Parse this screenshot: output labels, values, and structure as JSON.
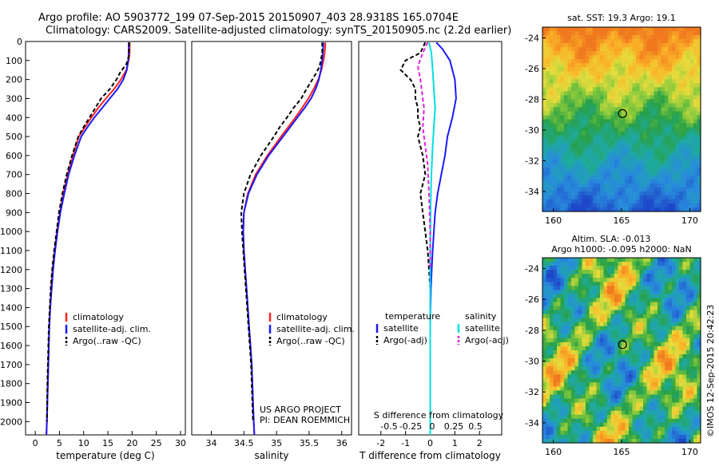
{
  "header": {
    "line1": "Argo profile: AO 5903772_199 07-Sep-2015 20150907_403 28.9318S 165.0704E",
    "line2": "Climatology: CARS2009. Satellite-adjusted climatology: synTS_20150905.nc (2.2d earlier)"
  },
  "colors": {
    "climatology": "#ff2020",
    "satellite": "#1a1aff",
    "argo": "#000000",
    "salinity_sat": "#00e0e0",
    "salinity_argo": "#e020e0"
  },
  "chart_data": [
    {
      "id": "temperature",
      "type": "line",
      "xlabel": "temperature (deg C)",
      "xlim": [
        -2,
        31
      ],
      "xticks": [
        0,
        5,
        10,
        15,
        20,
        25,
        30
      ],
      "ylim": [
        0,
        2070
      ],
      "yticks": [
        0,
        100,
        200,
        300,
        400,
        500,
        600,
        700,
        800,
        900,
        1000,
        1100,
        1200,
        1300,
        1400,
        1500,
        1600,
        1700,
        1800,
        1900,
        2000
      ],
      "legend": [
        "climatology",
        "satellite-adj. clim.",
        "Argo(..raw -QC)"
      ],
      "series": [
        {
          "name": "climatology",
          "color": "#ff2020",
          "points": [
            [
              19.5,
              5
            ],
            [
              19.5,
              60
            ],
            [
              19.3,
              100
            ],
            [
              18.8,
              150
            ],
            [
              17.7,
              200
            ],
            [
              16.3,
              250
            ],
            [
              14.6,
              300
            ],
            [
              13.0,
              350
            ],
            [
              11.6,
              400
            ],
            [
              10.3,
              450
            ],
            [
              9.0,
              500
            ],
            [
              7.8,
              600
            ],
            [
              6.7,
              700
            ],
            [
              5.8,
              800
            ],
            [
              5.1,
              900
            ],
            [
              4.5,
              1000
            ],
            [
              4.0,
              1100
            ],
            [
              3.6,
              1200
            ],
            [
              3.3,
              1300
            ],
            [
              3.1,
              1400
            ],
            [
              2.9,
              1500
            ],
            [
              2.8,
              1600
            ],
            [
              2.7,
              1700
            ],
            [
              2.6,
              1800
            ],
            [
              2.5,
              1900
            ],
            [
              2.4,
              2000
            ],
            [
              2.3,
              2070
            ]
          ]
        },
        {
          "name": "satellite-adj. clim.",
          "color": "#1a1aff",
          "points": [
            [
              19.3,
              5
            ],
            [
              19.3,
              60
            ],
            [
              19.2,
              100
            ],
            [
              18.9,
              150
            ],
            [
              18.2,
              200
            ],
            [
              17.0,
              250
            ],
            [
              15.4,
              300
            ],
            [
              13.8,
              350
            ],
            [
              12.2,
              400
            ],
            [
              10.8,
              450
            ],
            [
              9.5,
              500
            ],
            [
              8.1,
              600
            ],
            [
              6.9,
              700
            ],
            [
              6.0,
              800
            ],
            [
              5.2,
              900
            ],
            [
              4.6,
              1000
            ],
            [
              4.1,
              1100
            ],
            [
              3.7,
              1200
            ],
            [
              3.4,
              1300
            ],
            [
              3.1,
              1400
            ],
            [
              2.9,
              1500
            ],
            [
              2.8,
              1600
            ],
            [
              2.7,
              1700
            ],
            [
              2.6,
              1800
            ],
            [
              2.5,
              1900
            ],
            [
              2.4,
              2000
            ],
            [
              2.3,
              2070
            ]
          ]
        },
        {
          "name": "Argo(..raw -QC)",
          "color": "#000000",
          "dashed": true,
          "points": [
            [
              19.4,
              5
            ],
            [
              19.3,
              80
            ],
            [
              18.8,
              120
            ],
            [
              17.6,
              160
            ],
            [
              16.8,
              200
            ],
            [
              15.4,
              250
            ],
            [
              13.6,
              300
            ],
            [
              12.4,
              350
            ],
            [
              11.2,
              400
            ],
            [
              10.0,
              450
            ],
            [
              8.9,
              500
            ],
            [
              7.6,
              600
            ],
            [
              6.5,
              700
            ],
            [
              5.6,
              800
            ],
            [
              4.9,
              900
            ],
            [
              4.4,
              1000
            ],
            [
              3.9,
              1100
            ],
            [
              3.5,
              1200
            ],
            [
              3.2,
              1300
            ],
            [
              3.0,
              1400
            ],
            [
              2.8,
              1500
            ],
            [
              2.7,
              1600
            ],
            [
              2.6,
              1700
            ],
            [
              2.5,
              1800
            ],
            [
              2.45,
              1900
            ],
            [
              2.4,
              2000
            ]
          ]
        }
      ]
    },
    {
      "id": "salinity",
      "type": "line",
      "xlabel": "salinity",
      "xlim": [
        33.7,
        36.15
      ],
      "xticks": [
        34,
        34.5,
        35,
        35.5,
        36
      ],
      "ylim": [
        0,
        2070
      ],
      "legend": [
        "climatology",
        "satellite-adj. clim.",
        "Argo(..raw -QC)"
      ],
      "annotation": [
        "US ARGO PROJECT",
        "PI: DEAN ROEMMICH"
      ],
      "series": [
        {
          "name": "climatology",
          "color": "#ff2020",
          "points": [
            [
              35.75,
              5
            ],
            [
              35.74,
              60
            ],
            [
              35.72,
              100
            ],
            [
              35.69,
              150
            ],
            [
              35.64,
              200
            ],
            [
              35.57,
              250
            ],
            [
              35.49,
              300
            ],
            [
              35.39,
              350
            ],
            [
              35.29,
              400
            ],
            [
              35.18,
              450
            ],
            [
              35.07,
              500
            ],
            [
              34.86,
              600
            ],
            [
              34.68,
              700
            ],
            [
              34.56,
              800
            ],
            [
              34.5,
              900
            ],
            [
              34.49,
              1000
            ],
            [
              34.5,
              1100
            ],
            [
              34.52,
              1200
            ],
            [
              34.54,
              1300
            ],
            [
              34.56,
              1400
            ],
            [
              34.58,
              1500
            ],
            [
              34.6,
              1600
            ],
            [
              34.62,
              1700
            ],
            [
              34.63,
              1800
            ],
            [
              34.64,
              1900
            ],
            [
              34.65,
              2000
            ],
            [
              34.66,
              2070
            ]
          ]
        },
        {
          "name": "satellite-adj. clim.",
          "color": "#1a1aff",
          "points": [
            [
              35.72,
              5
            ],
            [
              35.71,
              60
            ],
            [
              35.7,
              100
            ],
            [
              35.68,
              150
            ],
            [
              35.65,
              200
            ],
            [
              35.6,
              250
            ],
            [
              35.53,
              300
            ],
            [
              35.43,
              350
            ],
            [
              35.32,
              400
            ],
            [
              35.21,
              450
            ],
            [
              35.1,
              500
            ],
            [
              34.88,
              600
            ],
            [
              34.7,
              700
            ],
            [
              34.57,
              800
            ],
            [
              34.5,
              900
            ],
            [
              34.49,
              1000
            ],
            [
              34.5,
              1100
            ],
            [
              34.52,
              1200
            ],
            [
              34.54,
              1300
            ],
            [
              34.56,
              1400
            ],
            [
              34.58,
              1500
            ],
            [
              34.6,
              1600
            ],
            [
              34.62,
              1700
            ],
            [
              34.63,
              1800
            ],
            [
              34.64,
              1900
            ],
            [
              34.65,
              2000
            ],
            [
              34.66,
              2070
            ]
          ]
        },
        {
          "name": "Argo(..raw -QC)",
          "color": "#000000",
          "dashed": true,
          "points": [
            [
              35.7,
              5
            ],
            [
              35.7,
              60
            ],
            [
              35.68,
              100
            ],
            [
              35.66,
              130
            ],
            [
              35.62,
              160
            ],
            [
              35.55,
              200
            ],
            [
              35.46,
              250
            ],
            [
              35.38,
              300
            ],
            [
              35.26,
              350
            ],
            [
              35.16,
              400
            ],
            [
              35.05,
              450
            ],
            [
              34.96,
              500
            ],
            [
              34.76,
              600
            ],
            [
              34.6,
              700
            ],
            [
              34.5,
              800
            ],
            [
              34.46,
              900
            ],
            [
              34.47,
              1000
            ],
            [
              34.49,
              1100
            ],
            [
              34.51,
              1200
            ],
            [
              34.53,
              1300
            ],
            [
              34.55,
              1400
            ],
            [
              34.57,
              1500
            ],
            [
              34.59,
              1600
            ],
            [
              34.61,
              1700
            ],
            [
              34.62,
              1800
            ],
            [
              34.63,
              1900
            ],
            [
              34.64,
              2000
            ]
          ]
        }
      ]
    },
    {
      "id": "difference",
      "type": "line",
      "xlabel": "T difference from climatology",
      "xlabel_top": "S difference from climatology",
      "xlim": [
        -2.9,
        2.9
      ],
      "xticks": [
        -2,
        -1,
        0,
        1,
        2
      ],
      "xtick_labels": [
        "-2",
        "-1",
        "0",
        "1",
        "2"
      ],
      "top_ticks": [
        "-0.5",
        "-0.25",
        "0",
        "0.25",
        "0.5"
      ],
      "ylim": [
        0,
        2070
      ],
      "legend_temperature_title": "temperature",
      "legend_salinity_title": "salinity",
      "legend": [
        "satellite",
        "Argo(-adj)",
        "satellite",
        "Argo(-adj)"
      ],
      "series": [
        {
          "name": "satellite",
          "color": "#1a1aff",
          "points": [
            [
              0.25,
              5
            ],
            [
              0.5,
              40
            ],
            [
              0.8,
              100
            ],
            [
              0.9,
              150
            ],
            [
              1.0,
              200
            ],
            [
              1.05,
              300
            ],
            [
              0.9,
              400
            ],
            [
              0.7,
              500
            ],
            [
              0.6,
              600
            ],
            [
              0.45,
              700
            ],
            [
              0.3,
              800
            ],
            [
              0.2,
              900
            ],
            [
              0.15,
              1000
            ],
            [
              0.1,
              1100
            ],
            [
              0.06,
              1200
            ],
            [
              0.03,
              1300
            ],
            [
              0.01,
              1400
            ],
            [
              0,
              1500
            ],
            [
              0,
              2070
            ]
          ]
        },
        {
          "name": "Argo(-adj)",
          "color": "#000000",
          "dashed": true,
          "points": [
            [
              -0.2,
              5
            ],
            [
              -0.4,
              60
            ],
            [
              -1.0,
              100
            ],
            [
              -1.2,
              150
            ],
            [
              -0.8,
              200
            ],
            [
              -0.6,
              250
            ],
            [
              -0.6,
              300
            ],
            [
              -0.5,
              350
            ],
            [
              -0.5,
              400
            ],
            [
              -0.4,
              450
            ],
            [
              -0.5,
              500
            ],
            [
              -0.3,
              600
            ],
            [
              -0.2,
              700
            ],
            [
              -0.4,
              800
            ],
            [
              -0.3,
              900
            ],
            [
              -0.2,
              1000
            ],
            [
              -0.1,
              1100
            ],
            [
              -0.05,
              1200
            ],
            [
              0,
              1300
            ],
            [
              0,
              2000
            ]
          ]
        },
        {
          "name": "satellite",
          "color": "#00e0e0",
          "points": [
            [
              -0.05,
              5
            ],
            [
              0.05,
              60
            ],
            [
              0.1,
              150
            ],
            [
              0.15,
              250
            ],
            [
              0.2,
              350
            ],
            [
              0.15,
              450
            ],
            [
              0.1,
              550
            ],
            [
              0.05,
              700
            ],
            [
              0.02,
              850
            ],
            [
              0.01,
              1000
            ],
            [
              0,
              1200
            ],
            [
              0,
              2070
            ]
          ]
        },
        {
          "name": "Argo(-adj)",
          "color": "#e020e0",
          "dashed": true,
          "points": [
            [
              -0.1,
              5
            ],
            [
              -0.3,
              60
            ],
            [
              -0.5,
              130
            ],
            [
              -0.4,
              200
            ],
            [
              -0.3,
              300
            ],
            [
              -0.25,
              350
            ],
            [
              -0.3,
              450
            ],
            [
              -0.2,
              550
            ],
            [
              -0.1,
              650
            ],
            [
              -0.05,
              800
            ],
            [
              0,
              1000
            ],
            [
              0,
              1200
            ]
          ]
        }
      ]
    },
    {
      "id": "sst_map",
      "type": "heatmap",
      "title": "sat. SST: 19.3 Argo: 19.1",
      "xlim": [
        159.2,
        170.8
      ],
      "ylim": [
        -35.3,
        -23.3
      ],
      "xticks": [
        160,
        165,
        170
      ],
      "yticks": [
        -24,
        -26,
        -28,
        -30,
        -32,
        -34
      ],
      "marker": [
        165.07,
        -28.93
      ]
    },
    {
      "id": "sla_map",
      "type": "heatmap",
      "title_line1": "Altim. SLA: -0.013",
      "title_line2": "Argo h1000: -0.095 h2000: NaN",
      "xlim": [
        159.2,
        170.8
      ],
      "ylim": [
        -35.3,
        -23.3
      ],
      "xticks": [
        160,
        165,
        170
      ],
      "yticks": [
        -24,
        -26,
        -28,
        -30,
        -32,
        -34
      ],
      "marker": [
        165.07,
        -28.93
      ]
    }
  ],
  "credit": "©IMOS 12-Sep-2015 20:42:23"
}
